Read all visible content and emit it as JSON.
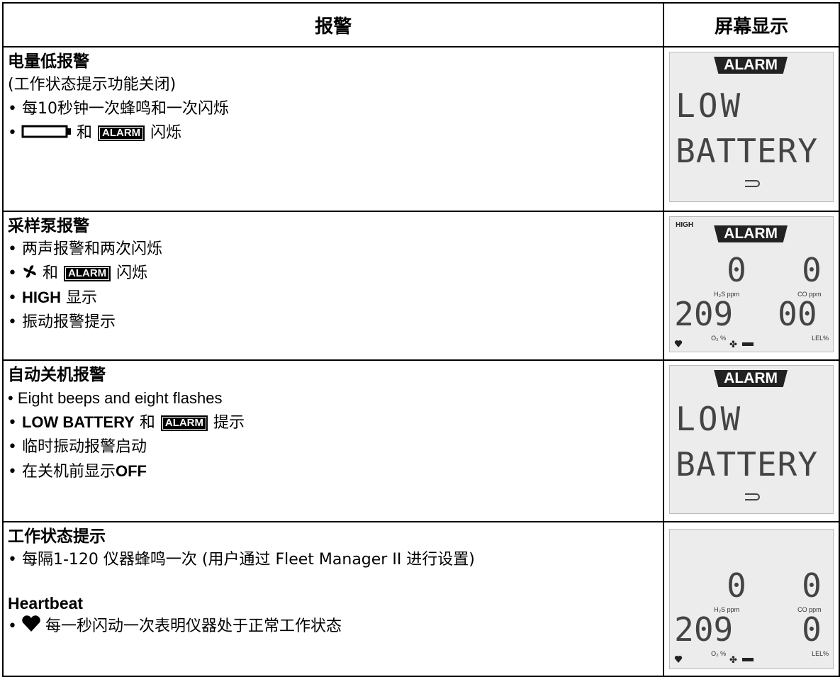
{
  "header": {
    "alarm": "报警",
    "display": "屏幕显示"
  },
  "rows": [
    {
      "title": "电量低报警",
      "lines": [
        [
          "(工作状态提示功能关闭)"
        ],
        [
          "• 每10秒钟一次蜂鸣和一次闪烁"
        ],
        [
          "•",
          "和",
          "ALARM",
          "闪烁"
        ]
      ],
      "display": {
        "banner": "ALARM",
        "line1": "LOW",
        "line2": "BATTERY"
      }
    },
    {
      "title": "采样泵报警",
      "lines": [
        [
          "• 两声报警和两次闪烁"
        ],
        [
          "•",
          "和",
          "ALARM",
          "闪烁"
        ],
        [
          "• ",
          "HIGH",
          " 显示"
        ],
        [
          "• 振动报警提示"
        ]
      ],
      "display": {
        "tag": "HIGH",
        "banner": "ALARM",
        "readings": [
          {
            "value": "0",
            "unit": "H₂S ppm"
          },
          {
            "value": "0",
            "unit": "CO ppm"
          },
          {
            "value": "209",
            "unit": "O₂ %"
          },
          {
            "value": "00",
            "unit": "LEL%"
          }
        ]
      }
    },
    {
      "title": "自动关机报警",
      "lines": [
        [
          "• Eight beeps and eight flashes"
        ],
        [
          "• ",
          "LOW BATTERY",
          " 和",
          "ALARM",
          "提示"
        ],
        [
          "• 临时振动报警启动"
        ],
        [
          "• 在关机前显示",
          "OFF"
        ]
      ],
      "display": {
        "banner": "ALARM",
        "line1": "LOW",
        "line2": "BATTERY"
      }
    },
    {
      "title": "工作状态提示",
      "lines": [
        [
          "• 每隔1-120 仪器蜂鸣一次 (用户通过 Fleet Manager II 进行设置)"
        ]
      ],
      "subtitle": "Heartbeat",
      "sublines": [
        [
          "•",
          "每一秒闪动一次表明仪器处于正常工作状态"
        ]
      ],
      "display": {
        "readings": [
          {
            "value": "0",
            "unit": "H₂S ppm"
          },
          {
            "value": "0",
            "unit": "CO ppm"
          },
          {
            "value": "209",
            "unit": "O₂ %"
          },
          {
            "value": "0",
            "unit": "LEL%"
          }
        ]
      }
    }
  ]
}
